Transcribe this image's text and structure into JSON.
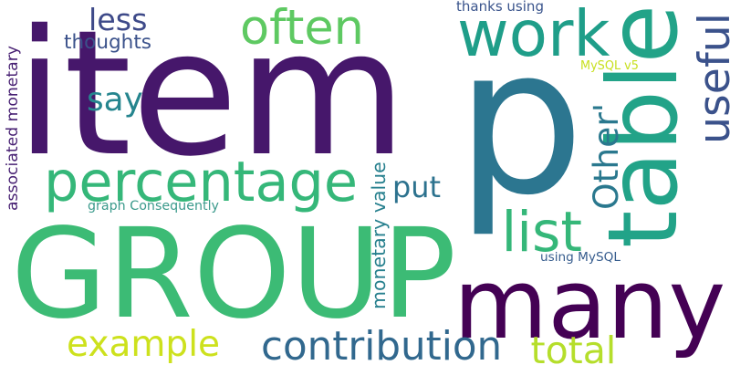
{
  "words": [
    {
      "text": "item",
      "color": "#46176b",
      "vertical": false
    },
    {
      "text": "p",
      "color": "#2c7690",
      "vertical": false
    },
    {
      "text": "GROUP",
      "color": "#3cbb75",
      "vertical": false
    },
    {
      "text": "many",
      "color": "#440154",
      "vertical": false
    },
    {
      "text": "table",
      "color": "#22a388",
      "vertical": true
    },
    {
      "text": "percentage",
      "color": "#35b779",
      "vertical": false
    },
    {
      "text": "work",
      "color": "#1f9e89",
      "vertical": false
    },
    {
      "text": "often",
      "color": "#5ec962",
      "vertical": false
    },
    {
      "text": "useful",
      "color": "#3b528b",
      "vertical": true
    },
    {
      "text": "less",
      "color": "#3e4a89",
      "vertical": false
    },
    {
      "text": "contribution",
      "color": "#31688e",
      "vertical": false
    },
    {
      "text": "example",
      "color": "#cde11d",
      "vertical": false
    },
    {
      "text": "total",
      "color": "#b5de2b",
      "vertical": false
    },
    {
      "text": "list",
      "color": "#35b779",
      "vertical": false
    },
    {
      "text": "Other'",
      "color": "#2a788e",
      "vertical": true
    },
    {
      "text": "say",
      "color": "#25858e",
      "vertical": false
    },
    {
      "text": "put",
      "color": "#2c728e",
      "vertical": false
    },
    {
      "text": "thoughts",
      "color": "#3b528b",
      "vertical": false
    },
    {
      "text": "associated monetary",
      "color": "#482173",
      "vertical": true
    },
    {
      "text": "monetary value",
      "color": "#27808e",
      "vertical": true
    },
    {
      "text": "graph Consequently",
      "color": "#3b9a8c",
      "vertical": false
    },
    {
      "text": "thanks using",
      "color": "#3a548c",
      "vertical": false
    },
    {
      "text": "MySQL v5",
      "color": "#c8e020",
      "vertical": false
    },
    {
      "text": "using MySQL",
      "color": "#365c8d",
      "vertical": false
    }
  ]
}
